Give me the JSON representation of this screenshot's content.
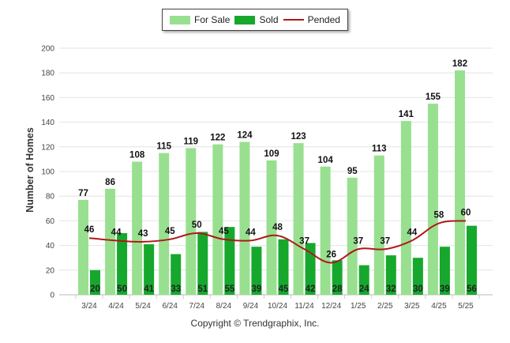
{
  "chart_data": {
    "type": "bar",
    "categories": [
      "3/24",
      "4/24",
      "5/24",
      "6/24",
      "7/24",
      "8/24",
      "9/24",
      "10/24",
      "11/24",
      "12/24",
      "1/25",
      "2/25",
      "3/25",
      "4/25",
      "5/25"
    ],
    "series": [
      {
        "name": "For Sale",
        "type": "bar",
        "color": "#98e090",
        "values": [
          77,
          86,
          108,
          115,
          119,
          122,
          124,
          109,
          123,
          104,
          95,
          113,
          141,
          155,
          182
        ]
      },
      {
        "name": "Sold",
        "type": "bar",
        "color": "#16a82d",
        "values": [
          20,
          50,
          41,
          33,
          51,
          55,
          39,
          45,
          42,
          28,
          24,
          32,
          30,
          39,
          56
        ]
      },
      {
        "name": "Pended",
        "type": "line",
        "color": "#b01818",
        "values": [
          46,
          44,
          43,
          45,
          50,
          45,
          44,
          48,
          37,
          26,
          37,
          37,
          44,
          58,
          60
        ]
      }
    ],
    "ylabel": "Number of Homes",
    "xlabel": "",
    "ylim": [
      0,
      200
    ],
    "yticks": [
      0,
      20,
      40,
      60,
      80,
      100,
      120,
      140,
      160,
      180,
      200
    ],
    "legend_position": "top-center",
    "grid": true
  },
  "legend": {
    "for_sale": "For Sale",
    "sold": "Sold",
    "pended": "Pended"
  },
  "footer": "Copyright © Trendgraphix, Inc."
}
